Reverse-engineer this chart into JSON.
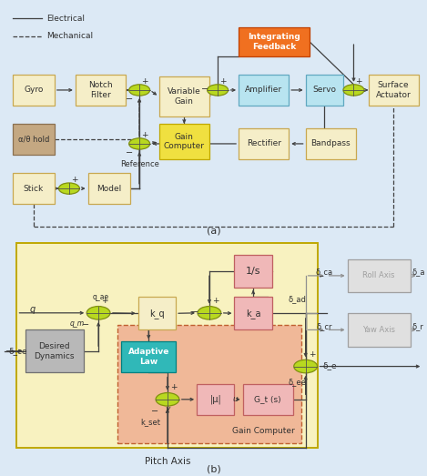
{
  "bg": "#dce9f5",
  "fig_w": 4.69,
  "fig_h": 5.23,
  "panel_a": {
    "title": "(a)",
    "legend": {
      "elec_label": "Electrical",
      "mech_label": "Mechanical"
    },
    "blocks": {
      "gyro": {
        "label": "Gyro",
        "fc": "#f5eec8",
        "ec": "#c8a850"
      },
      "notch": {
        "label": "Notch\nFilter",
        "fc": "#f5eec8",
        "ec": "#c8a850"
      },
      "variable_gain": {
        "label": "Variable\nGain",
        "fc": "#f5eec8",
        "ec": "#c8a850"
      },
      "gain_computer": {
        "label": "Gain\nComputer",
        "fc": "#f0e040",
        "ec": "#c0a800"
      },
      "amplifier": {
        "label": "Amplifier",
        "fc": "#b8e4f0",
        "ec": "#60a8c0"
      },
      "servo": {
        "label": "Servo",
        "fc": "#b8e4f0",
        "ec": "#60a8c0"
      },
      "surface_act": {
        "label": "Surface\nActuator",
        "fc": "#f5eec8",
        "ec": "#c8a850"
      },
      "int_feedback": {
        "label": "Integrating\nFeedback",
        "fc": "#f07020",
        "ec": "#c04000"
      },
      "alpha_hold": {
        "label": "α/θ hold",
        "fc": "#c4a882",
        "ec": "#8a7050"
      },
      "model": {
        "label": "Model",
        "fc": "#f5eec8",
        "ec": "#c8a850"
      },
      "stick": {
        "label": "Stick",
        "fc": "#f5eec8",
        "ec": "#c8a850"
      },
      "rectifier": {
        "label": "Rectifier",
        "fc": "#f5eec8",
        "ec": "#c8a850"
      },
      "bandpass": {
        "label": "Bandpass",
        "fc": "#f5eec8",
        "ec": "#c8a850"
      }
    }
  },
  "panel_b": {
    "title": "(b)",
    "pitch_label": "Pitch Axis",
    "gc_label": "Gain Computer",
    "blocks": {
      "desired_dyn": {
        "label": "Desired\nDynamics",
        "fc": "#b8b8b8",
        "ec": "#707070"
      },
      "kq": {
        "label": "k_q",
        "fc": "#f5eec8",
        "ec": "#c8a850"
      },
      "ka": {
        "label": "k_a",
        "fc": "#f0b8b8",
        "ec": "#c06060"
      },
      "one_s": {
        "label": "1/s",
        "fc": "#f0b8b8",
        "ec": "#c06060"
      },
      "adaptive": {
        "label": "Adaptive\nLaw",
        "fc": "#30b8b8",
        "ec": "#008080"
      },
      "mu": {
        "label": "|μ|",
        "fc": "#f0b8b8",
        "ec": "#c06060"
      },
      "gt": {
        "label": "G_t (s)",
        "fc": "#f0b8b8",
        "ec": "#c06060"
      },
      "roll": {
        "label": "Roll Axis",
        "fc": "#e8e8e8",
        "ec": "#a0a0a0"
      },
      "yaw": {
        "label": "Yaw Axis",
        "fc": "#e8e8e8",
        "ec": "#a0a0a0"
      }
    }
  },
  "arrow_c": "#404040",
  "line_c": "#404040",
  "dash_c": "#606060",
  "sum_fc": "#b8d820",
  "sum_ec": "#809010"
}
